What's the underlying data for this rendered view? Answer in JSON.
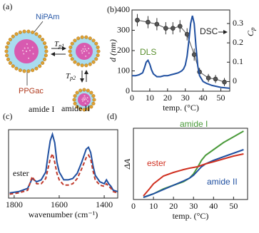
{
  "diagram": {
    "panel_label": "(a)",
    "shell_label": "NiPAm",
    "core_label": "PPGac",
    "transition_1": {
      "base": "T",
      "sub": "p1"
    },
    "transition_2": {
      "base": "T",
      "sub": "p2"
    }
  },
  "chart_data": [
    {
      "type": "line",
      "panel_label": "(b)",
      "x_label": "temp. (°C)",
      "y_label": "d (nm)",
      "y2_label": {
        "base": "C",
        "sub": "p"
      },
      "xlim": [
        0,
        55
      ],
      "xticks": [
        0,
        10,
        20,
        30,
        40,
        50
      ],
      "ylim": [
        0,
        400
      ],
      "yticks": [
        0,
        100,
        200,
        300,
        400
      ],
      "y2lim": [
        -0.05,
        0.37
      ],
      "y2ticks": [
        0,
        0.1,
        0.2,
        0.3
      ],
      "series": [
        {
          "name": "DLS",
          "name_color": "#5a8f2e",
          "color": "#555555",
          "marker": "circle",
          "x": [
            3,
            9,
            14,
            19,
            23,
            27,
            31,
            35,
            38,
            43,
            47,
            52
          ],
          "values": [
            350,
            340,
            330,
            310,
            310,
            320,
            280,
            180,
            95,
            65,
            60,
            45
          ],
          "errors": [
            30,
            30,
            30,
            30,
            30,
            30,
            30,
            30,
            20,
            20,
            20,
            20
          ]
        },
        {
          "name": "DSC",
          "name_color": "#222222",
          "color": "#1f4fa0",
          "axis": "y2",
          "x": [
            0,
            2,
            4,
            6,
            7,
            8,
            9,
            10,
            11,
            12,
            14,
            16,
            18,
            20,
            22,
            24,
            26,
            28,
            29,
            30,
            31,
            32,
            33,
            34,
            35,
            36,
            37,
            38,
            40,
            42,
            45,
            50,
            55
          ],
          "values": [
            0.03,
            0.03,
            0.035,
            0.045,
            0.07,
            0.1,
            0.11,
            0.09,
            0.06,
            0.04,
            0.025,
            0.025,
            0.03,
            0.03,
            0.035,
            0.04,
            0.045,
            0.055,
            0.065,
            0.085,
            0.13,
            0.21,
            0.3,
            0.34,
            0.3,
            0.18,
            0.08,
            0.03,
            0.0,
            -0.01,
            -0.02,
            -0.03,
            -0.035
          ]
        }
      ]
    },
    {
      "type": "line",
      "panel_label": "(c)",
      "x_label": "wavenumber (cm⁻¹)",
      "xlim": [
        1825,
        1340
      ],
      "xticks": [
        1800,
        1600,
        1400
      ],
      "ylim": [
        0,
        1.05
      ],
      "annotations": [
        "amide I",
        "amide II",
        "ester"
      ],
      "series": [
        {
          "color": "#1f4fa0",
          "dash": false,
          "x": [
            1820,
            1780,
            1740,
            1720,
            1700,
            1680,
            1660,
            1650,
            1640,
            1630,
            1620,
            1610,
            1600,
            1580,
            1560,
            1540,
            1520,
            1500,
            1480,
            1470,
            1460,
            1450,
            1440,
            1420,
            1400,
            1390,
            1380,
            1370,
            1360,
            1340
          ],
          "values": [
            0.08,
            0.1,
            0.15,
            0.3,
            0.25,
            0.28,
            0.4,
            0.65,
            0.88,
            0.98,
            0.85,
            0.55,
            0.4,
            0.28,
            0.28,
            0.3,
            0.38,
            0.55,
            0.75,
            0.78,
            0.7,
            0.5,
            0.35,
            0.25,
            0.22,
            0.28,
            0.22,
            0.18,
            0.12,
            0.1
          ]
        },
        {
          "color": "#c0392b",
          "dash": true,
          "x": [
            1820,
            1780,
            1740,
            1720,
            1700,
            1680,
            1660,
            1650,
            1640,
            1630,
            1620,
            1610,
            1600,
            1580,
            1560,
            1540,
            1520,
            1500,
            1480,
            1470,
            1460,
            1450,
            1440,
            1420,
            1400,
            1390,
            1380,
            1370,
            1360,
            1340
          ],
          "values": [
            0.06,
            0.08,
            0.12,
            0.33,
            0.22,
            0.22,
            0.3,
            0.45,
            0.6,
            0.68,
            0.55,
            0.38,
            0.28,
            0.2,
            0.2,
            0.22,
            0.3,
            0.45,
            0.62,
            0.66,
            0.6,
            0.42,
            0.28,
            0.2,
            0.18,
            0.22,
            0.18,
            0.15,
            0.1,
            0.08
          ]
        }
      ]
    },
    {
      "type": "line",
      "panel_label": "(d)",
      "x_label": "temp. (°C)",
      "y_label": "ΔA",
      "xlim": [
        0,
        57
      ],
      "xticks": [
        0,
        10,
        20,
        30,
        40,
        50
      ],
      "ylim": [
        0,
        1
      ],
      "series": [
        {
          "name": "amide I",
          "color": "#4a9a3a",
          "x": [
            5,
            8,
            10,
            15,
            20,
            25,
            28,
            30,
            32,
            34,
            36,
            40,
            45,
            50,
            55
          ],
          "values": [
            0.03,
            0.06,
            0.08,
            0.15,
            0.2,
            0.25,
            0.3,
            0.36,
            0.45,
            0.55,
            0.62,
            0.7,
            0.8,
            0.88,
            0.96
          ]
        },
        {
          "name": "amide II",
          "color": "#1f4fa0",
          "x": [
            5,
            8,
            10,
            15,
            20,
            25,
            28,
            30,
            32,
            34,
            36,
            40,
            45,
            50,
            55
          ],
          "values": [
            0.03,
            0.06,
            0.08,
            0.14,
            0.2,
            0.26,
            0.3,
            0.34,
            0.4,
            0.46,
            0.5,
            0.55,
            0.6,
            0.65,
            0.7
          ]
        },
        {
          "name": "ester",
          "color": "#d03020",
          "x": [
            5,
            8,
            10,
            15,
            20,
            25,
            28,
            30,
            32,
            34,
            36,
            40,
            45,
            50,
            55
          ],
          "values": [
            0.05,
            0.15,
            0.22,
            0.33,
            0.38,
            0.42,
            0.44,
            0.45,
            0.46,
            0.48,
            0.5,
            0.53,
            0.57,
            0.61,
            0.64
          ]
        }
      ]
    }
  ]
}
